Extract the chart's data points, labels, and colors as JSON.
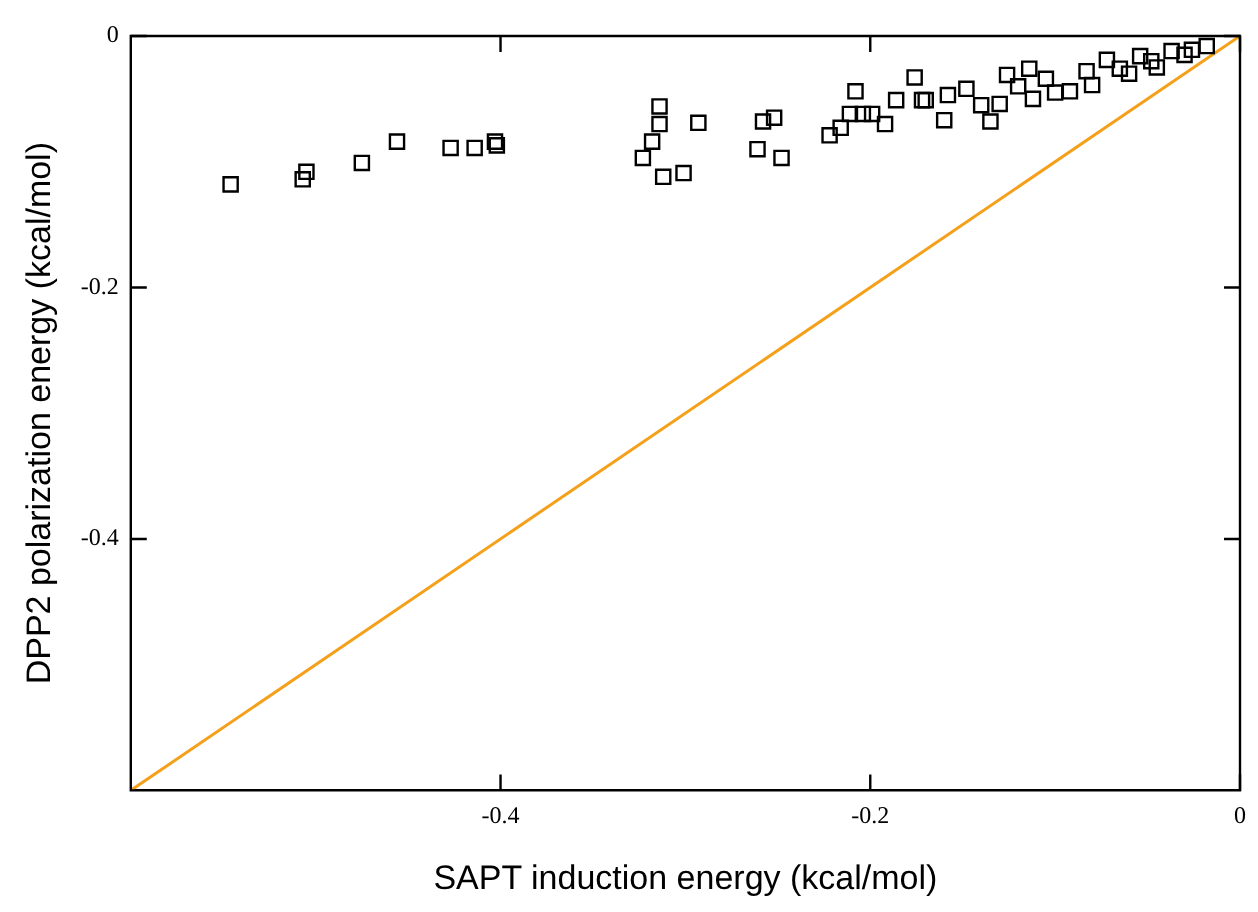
{
  "chart_data": {
    "type": "scatter",
    "xlabel": "SAPT induction energy (kcal/mol)",
    "ylabel": "DPP2 polarization energy (kcal/mol)",
    "xlim": [
      -0.6,
      0
    ],
    "ylim": [
      -0.6,
      0
    ],
    "xticks": [
      -0.4,
      -0.2,
      0
    ],
    "yticks": [
      -0.4,
      -0.2,
      0
    ],
    "grid": false,
    "marker": "square",
    "series": [
      {
        "color": "#000000",
        "x": [
          -0.546,
          -0.507,
          -0.505,
          -0.475,
          -0.456,
          -0.427,
          -0.414,
          -0.403,
          -0.402,
          -0.314,
          -0.314,
          -0.318,
          -0.323,
          -0.312,
          -0.301,
          -0.293,
          -0.258,
          -0.252,
          -0.261,
          -0.248,
          -0.222,
          -0.216,
          -0.208,
          -0.211,
          -0.204,
          -0.199,
          -0.192,
          -0.186,
          -0.176,
          -0.172,
          -0.17,
          -0.16,
          -0.158,
          -0.148,
          -0.14,
          -0.135,
          -0.13,
          -0.126,
          -0.12,
          -0.114,
          -0.112,
          -0.105,
          -0.1,
          -0.092,
          -0.083,
          -0.08,
          -0.072,
          -0.065,
          -0.06,
          -0.054,
          -0.048,
          -0.045,
          -0.037,
          -0.03,
          -0.026,
          -0.018
        ],
        "values": [
          -0.118,
          -0.114,
          -0.108,
          -0.101,
          -0.084,
          -0.089,
          -0.089,
          -0.084,
          -0.087,
          -0.056,
          -0.07,
          -0.084,
          -0.097,
          -0.112,
          -0.109,
          -0.069,
          -0.068,
          -0.065,
          -0.09,
          -0.097,
          -0.079,
          -0.073,
          -0.044,
          -0.062,
          -0.062,
          -0.062,
          -0.07,
          -0.051,
          -0.033,
          -0.051,
          -0.051,
          -0.067,
          -0.047,
          -0.042,
          -0.055,
          -0.068,
          -0.054,
          -0.031,
          -0.04,
          -0.026,
          -0.05,
          -0.034,
          -0.045,
          -0.044,
          -0.028,
          -0.039,
          -0.019,
          -0.026,
          -0.03,
          -0.016,
          -0.02,
          -0.025,
          -0.012,
          -0.015,
          -0.011,
          -0.008
        ]
      },
      {
        "type": "line",
        "color": "#f5a01a",
        "marker": "none",
        "line_style": "solid",
        "x": [
          -0.6,
          0
        ],
        "values": [
          -0.6,
          0
        ]
      }
    ]
  }
}
